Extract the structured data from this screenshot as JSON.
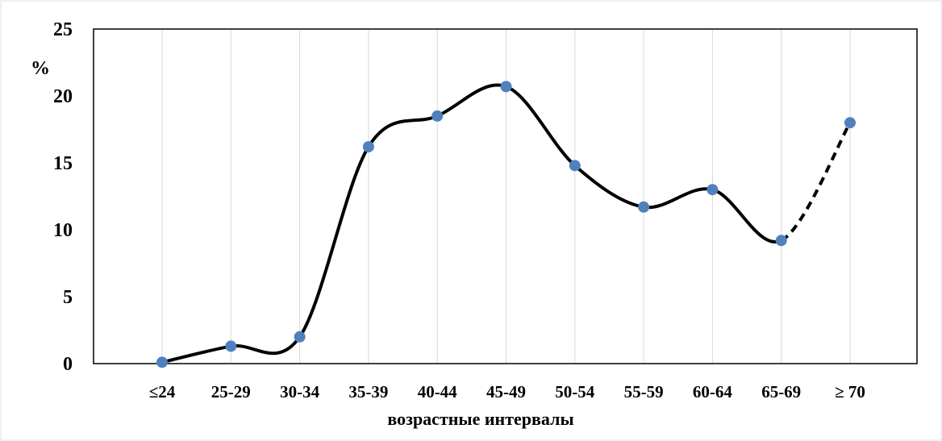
{
  "chart_data": {
    "type": "line",
    "categories": [
      "≤24",
      "25-29",
      "30-34",
      "35-39",
      "40-44",
      "45-49",
      "50-54",
      "55-59",
      "60-64",
      "65-69",
      "≥ 70"
    ],
    "series": [
      {
        "values": [
          0.1,
          1.3,
          2.0,
          16.2,
          18.5,
          20.7,
          14.8,
          11.7,
          13.0,
          9.2,
          18.0
        ]
      }
    ],
    "ylim": [
      0,
      25
    ],
    "yticks": [
      0,
      5,
      10,
      15,
      20,
      25
    ],
    "ylabel": "%",
    "xlabel": "возрастные интервалы",
    "dashed_last_segment": true,
    "grid": "vertical",
    "colors": {
      "line": "#000000",
      "marker": "#4f81bd",
      "grid": "#d9d9d9",
      "border": "#000000"
    }
  }
}
